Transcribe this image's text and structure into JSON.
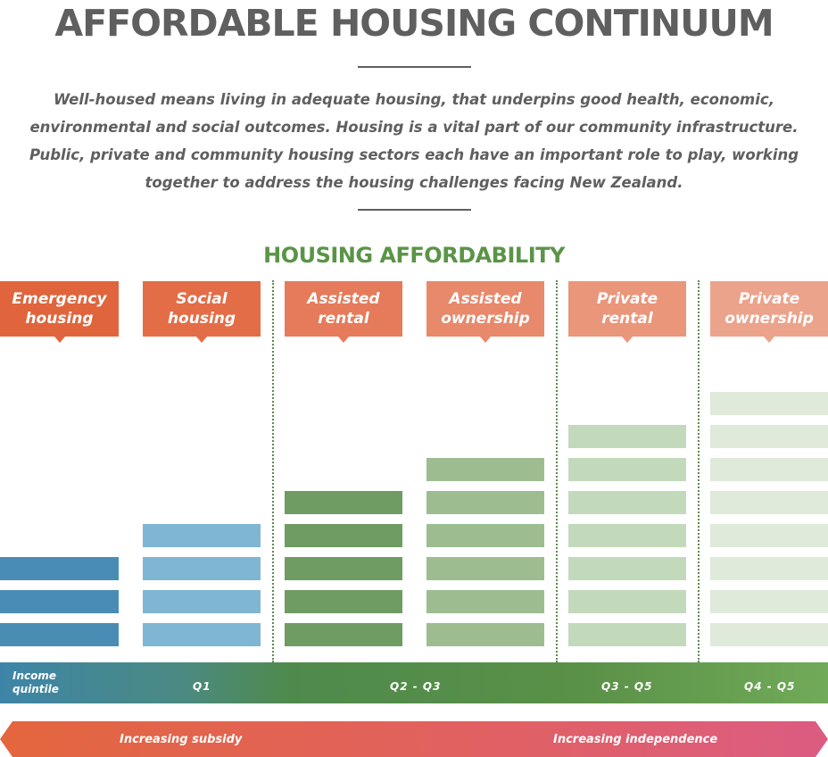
{
  "title": "AFFORDABLE HOUSING CONTINUUM",
  "intro": "Well-housed means living in adequate housing, that underpins good health, economic, environmental and social outcomes. Housing is a vital part of our community infrastructure. Public, private and community housing sectors each have an important role to play, working together to address the housing challenges facing New Zealand.",
  "subtitle": "HOUSING AFFORDABILITY",
  "categories": [
    {
      "label": "Emergency housing",
      "color": "#e0653c",
      "bar_color": "#4a8db4",
      "bar_count": 3
    },
    {
      "label": "Social housing",
      "color": "#e36d47",
      "bar_color": "#7fb6d4",
      "bar_count": 4
    },
    {
      "label": "Assisted rental",
      "color": "#e57b5b",
      "bar_color": "#6f9c62",
      "bar_count": 5
    },
    {
      "label": "Assisted ownership",
      "color": "#e8896b",
      "bar_color": "#9dbd91",
      "bar_count": 6
    },
    {
      "label": "Private rental",
      "color": "#ea967b",
      "bar_color": "#c3d9bb",
      "bar_count": 7
    },
    {
      "label": "Private ownership",
      "color": "#eca38b",
      "bar_color": "#dfeadb",
      "bar_count": 8
    }
  ],
  "income_label": "Income quintile",
  "quintiles": [
    "Q1",
    "Q2 - Q3",
    "Q3 - Q5",
    "Q4 - Q5"
  ],
  "arrow_left": "Increasing subsidy",
  "arrow_right": "Increasing independence"
}
